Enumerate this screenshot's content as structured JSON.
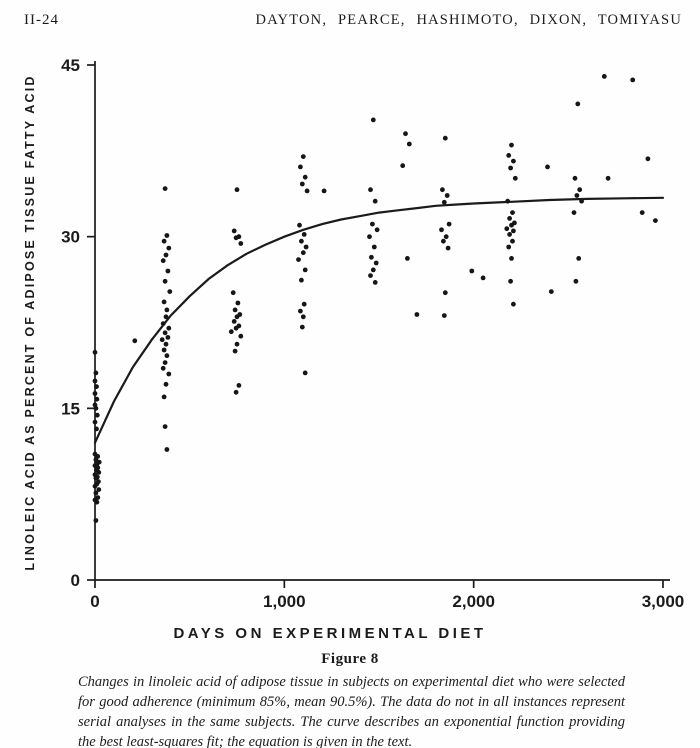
{
  "header": {
    "left": "II-24",
    "right": "DAYTON, PEARCE, HASHIMOTO, DIXON, TOMIYASU"
  },
  "figure": {
    "label": "Figure 8",
    "caption": "Changes in linoleic acid of adipose tissue in subjects on experimental diet who were selected for good adherence (minimum 85%, mean 90.5%). The data do not in all instances represent serial analyses in the same subjects. The curve describes an exponential function providing the best least-squares fit; the equation is given in the text."
  },
  "chart_data": {
    "type": "scatter",
    "title": "",
    "xlabel": "DAYS ON EXPERIMENTAL DIET",
    "ylabel": "LINOLEIC ACID AS PERCENT OF ADIPOSE TISSUE FATTY ACID",
    "xlim": [
      0,
      3000
    ],
    "ylim": [
      0,
      45
    ],
    "grid": false,
    "legend": "none",
    "x_ticks": [
      {
        "value": 0,
        "label": "0"
      },
      {
        "value": 1000,
        "label": "1,000"
      },
      {
        "value": 2000,
        "label": "2,000"
      },
      {
        "value": 3000,
        "label": "3,000"
      }
    ],
    "y_ticks": [
      {
        "value": 0,
        "label": "0"
      },
      {
        "value": 15,
        "label": "15"
      },
      {
        "value": 30,
        "label": "30"
      },
      {
        "value": 45,
        "label": "45"
      }
    ],
    "marker": {
      "shape": "circle",
      "radius": 2.4,
      "color": "#161616"
    },
    "colors": {
      "ink": "#1b1b1b",
      "paper": "#fefefe"
    },
    "points": [
      [
        0,
        7.0
      ],
      [
        5,
        5.2
      ],
      [
        10,
        6.8
      ],
      [
        15,
        7.2
      ],
      [
        5,
        7.6
      ],
      [
        20,
        7.9
      ],
      [
        0,
        8.2
      ],
      [
        10,
        8.4
      ],
      [
        18,
        8.6
      ],
      [
        5,
        8.9
      ],
      [
        12,
        9.0
      ],
      [
        0,
        9.2
      ],
      [
        20,
        9.4
      ],
      [
        8,
        9.6
      ],
      [
        15,
        9.8
      ],
      [
        0,
        10.0
      ],
      [
        10,
        10.1
      ],
      [
        22,
        10.3
      ],
      [
        5,
        10.5
      ],
      [
        14,
        10.8
      ],
      [
        0,
        11.0
      ],
      [
        8,
        13.2
      ],
      [
        0,
        13.8
      ],
      [
        12,
        14.4
      ],
      [
        5,
        15.0
      ],
      [
        0,
        15.3
      ],
      [
        10,
        15.8
      ],
      [
        0,
        16.3
      ],
      [
        8,
        16.9
      ],
      [
        0,
        17.4
      ],
      [
        5,
        18.1
      ],
      [
        0,
        19.9
      ],
      [
        210,
        20.9
      ],
      [
        370,
        34.2
      ],
      [
        380,
        30.1
      ],
      [
        365,
        29.6
      ],
      [
        390,
        29.0
      ],
      [
        375,
        28.4
      ],
      [
        360,
        27.9
      ],
      [
        385,
        27.0
      ],
      [
        370,
        26.1
      ],
      [
        395,
        25.2
      ],
      [
        365,
        24.3
      ],
      [
        380,
        23.6
      ],
      [
        375,
        23.0
      ],
      [
        360,
        22.4
      ],
      [
        390,
        22.0
      ],
      [
        370,
        21.6
      ],
      [
        385,
        21.2
      ],
      [
        355,
        21.0
      ],
      [
        375,
        20.6
      ],
      [
        365,
        20.1
      ],
      [
        380,
        19.6
      ],
      [
        370,
        19.0
      ],
      [
        360,
        18.5
      ],
      [
        390,
        18.0
      ],
      [
        375,
        17.1
      ],
      [
        365,
        16.0
      ],
      [
        370,
        13.4
      ],
      [
        380,
        11.4
      ],
      [
        750,
        34.1
      ],
      [
        735,
        30.5
      ],
      [
        760,
        30.0
      ],
      [
        745,
        29.9
      ],
      [
        770,
        29.4
      ],
      [
        730,
        25.1
      ],
      [
        755,
        24.2
      ],
      [
        740,
        23.6
      ],
      [
        765,
        23.2
      ],
      [
        750,
        23.0
      ],
      [
        735,
        22.6
      ],
      [
        760,
        22.2
      ],
      [
        745,
        22.0
      ],
      [
        720,
        21.7
      ],
      [
        770,
        21.3
      ],
      [
        750,
        20.6
      ],
      [
        740,
        20.0
      ],
      [
        760,
        17.0
      ],
      [
        745,
        16.4
      ],
      [
        1100,
        37.0
      ],
      [
        1085,
        36.1
      ],
      [
        1110,
        35.2
      ],
      [
        1095,
        34.6
      ],
      [
        1120,
        34.0
      ],
      [
        1080,
        31.0
      ],
      [
        1105,
        30.2
      ],
      [
        1090,
        29.6
      ],
      [
        1115,
        29.1
      ],
      [
        1100,
        28.6
      ],
      [
        1075,
        28.0
      ],
      [
        1110,
        27.1
      ],
      [
        1090,
        26.2
      ],
      [
        1105,
        24.1
      ],
      [
        1085,
        23.5
      ],
      [
        1100,
        23.0
      ],
      [
        1095,
        22.1
      ],
      [
        1110,
        18.1
      ],
      [
        1210,
        34.0
      ],
      [
        1470,
        40.2
      ],
      [
        1455,
        34.1
      ],
      [
        1480,
        33.1
      ],
      [
        1465,
        31.1
      ],
      [
        1490,
        30.6
      ],
      [
        1450,
        30.0
      ],
      [
        1475,
        29.1
      ],
      [
        1460,
        28.2
      ],
      [
        1485,
        27.7
      ],
      [
        1470,
        27.1
      ],
      [
        1455,
        26.6
      ],
      [
        1480,
        26.0
      ],
      [
        1640,
        39.0
      ],
      [
        1660,
        38.1
      ],
      [
        1625,
        36.2
      ],
      [
        1650,
        28.1
      ],
      [
        1700,
        23.2
      ],
      [
        1850,
        38.6
      ],
      [
        1835,
        34.1
      ],
      [
        1860,
        33.6
      ],
      [
        1845,
        33.0
      ],
      [
        1870,
        31.1
      ],
      [
        1830,
        30.6
      ],
      [
        1855,
        30.0
      ],
      [
        1840,
        29.6
      ],
      [
        1865,
        29.0
      ],
      [
        1850,
        25.1
      ],
      [
        1845,
        23.1
      ],
      [
        1990,
        27.0
      ],
      [
        2050,
        26.4
      ],
      [
        2200,
        38.0
      ],
      [
        2185,
        37.1
      ],
      [
        2210,
        36.6
      ],
      [
        2195,
        36.0
      ],
      [
        2220,
        35.1
      ],
      [
        2180,
        33.1
      ],
      [
        2205,
        32.1
      ],
      [
        2190,
        31.6
      ],
      [
        2215,
        31.2
      ],
      [
        2200,
        31.0
      ],
      [
        2175,
        30.7
      ],
      [
        2210,
        30.5
      ],
      [
        2190,
        30.2
      ],
      [
        2205,
        29.6
      ],
      [
        2185,
        29.1
      ],
      [
        2200,
        28.1
      ],
      [
        2195,
        26.1
      ],
      [
        2210,
        24.1
      ],
      [
        2390,
        36.1
      ],
      [
        2410,
        25.2
      ],
      [
        2550,
        41.6
      ],
      [
        2535,
        35.1
      ],
      [
        2560,
        34.1
      ],
      [
        2545,
        33.6
      ],
      [
        2570,
        33.1
      ],
      [
        2530,
        32.1
      ],
      [
        2555,
        28.1
      ],
      [
        2540,
        26.1
      ],
      [
        2690,
        44.0
      ],
      [
        2710,
        35.1
      ],
      [
        2840,
        43.7
      ],
      [
        2920,
        36.8
      ],
      [
        2890,
        32.1
      ],
      [
        2960,
        31.4
      ]
    ],
    "curve": {
      "name": "exponential-least-squares-fit",
      "points": [
        [
          0,
          12.0
        ],
        [
          100,
          15.6
        ],
        [
          200,
          18.6
        ],
        [
          300,
          21.0
        ],
        [
          400,
          23.1
        ],
        [
          500,
          24.8
        ],
        [
          600,
          26.3
        ],
        [
          700,
          27.5
        ],
        [
          800,
          28.5
        ],
        [
          900,
          29.3
        ],
        [
          1000,
          30.0
        ],
        [
          1100,
          30.6
        ],
        [
          1200,
          31.1
        ],
        [
          1300,
          31.5
        ],
        [
          1400,
          31.8
        ],
        [
          1500,
          32.1
        ],
        [
          1600,
          32.3
        ],
        [
          1700,
          32.5
        ],
        [
          1800,
          32.7
        ],
        [
          1900,
          32.8
        ],
        [
          2000,
          32.9
        ],
        [
          2200,
          33.05
        ],
        [
          2400,
          33.2
        ],
        [
          2600,
          33.3
        ],
        [
          2800,
          33.35
        ],
        [
          3000,
          33.4
        ]
      ]
    }
  }
}
